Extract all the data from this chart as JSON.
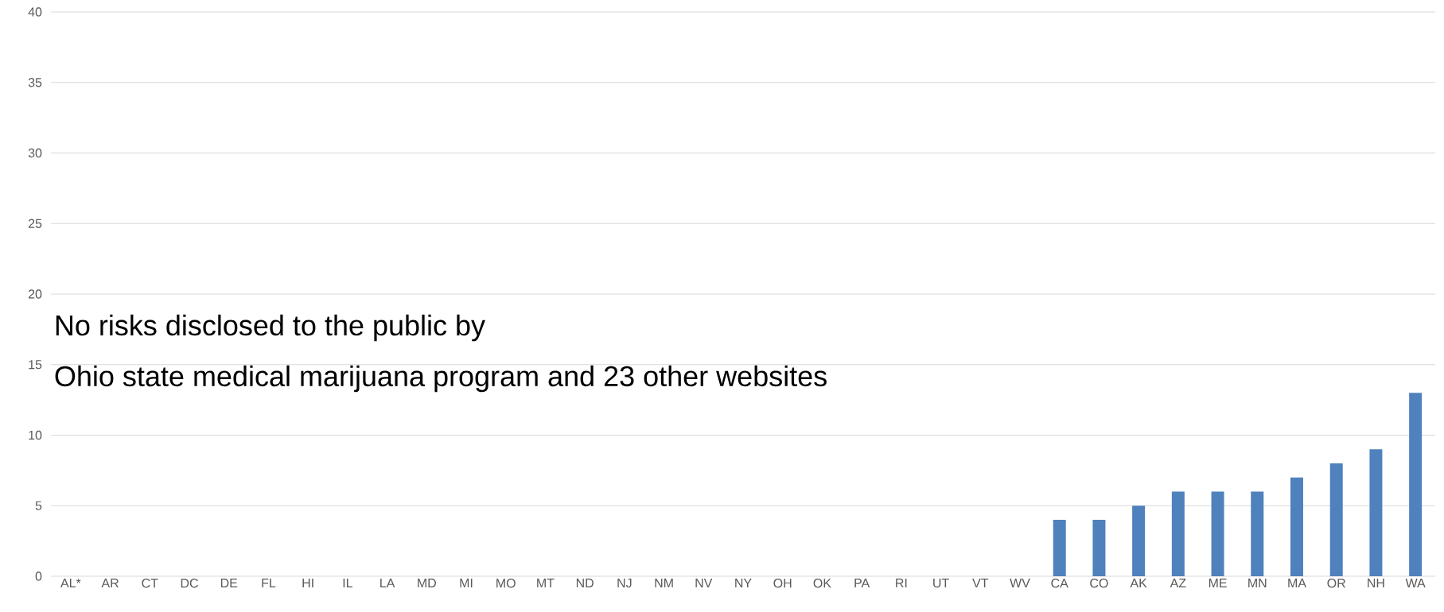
{
  "chart_data": {
    "type": "bar",
    "categories": [
      "AL*",
      "AR",
      "CT",
      "DC",
      "DE",
      "FL",
      "HI",
      "IL",
      "LA",
      "MD",
      "MI",
      "MO",
      "MT",
      "ND",
      "NJ",
      "NM",
      "NV",
      "NY",
      "OH",
      "OK",
      "PA",
      "RI",
      "UT",
      "VT",
      "WV",
      "CA",
      "CO",
      "AK",
      "AZ",
      "ME",
      "MN",
      "MA",
      "OR",
      "NH",
      "WA"
    ],
    "values": [
      0,
      0,
      0,
      0,
      0,
      0,
      0,
      0,
      0,
      0,
      0,
      0,
      0,
      0,
      0,
      0,
      0,
      0,
      0,
      0,
      0,
      0,
      0,
      0,
      0,
      4,
      4,
      5,
      6,
      6,
      6,
      7,
      8,
      9,
      13
    ],
    "color": "#4f81bd",
    "ylim": [
      0,
      40
    ],
    "yticks": [
      0,
      5,
      10,
      15,
      20,
      25,
      30,
      35,
      40
    ],
    "grid": "y",
    "annotations": [
      "No risks disclosed to the public by",
      "Ohio state medical marijuana program and 23 other websites"
    ]
  }
}
